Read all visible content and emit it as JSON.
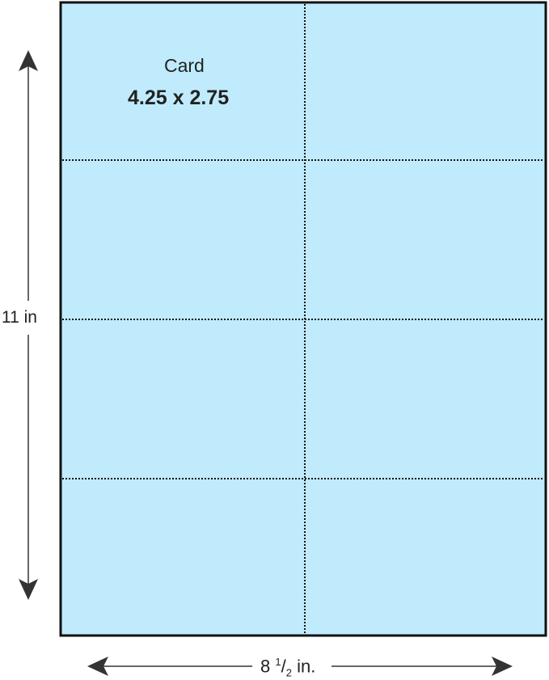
{
  "card_label": "Card",
  "card_size": "4.25 x 2.75",
  "height_label": "11 in",
  "width_label": {
    "whole": "8 ",
    "num": "1",
    "slash": "/",
    "den": "2",
    "unit": " in."
  },
  "colors": {
    "sheet": "#c0ebfd",
    "border": "#111111",
    "arrow": "#333333"
  },
  "grid": {
    "columns": 2,
    "rows": 4
  }
}
